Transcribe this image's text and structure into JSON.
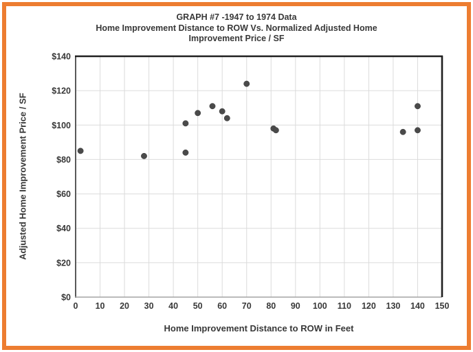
{
  "frame": {
    "border_color": "#ED7D31",
    "background_color": "#FFFFFF"
  },
  "chart_data": {
    "type": "scatter",
    "title_lines": [
      "GRAPH #7 -1947 to 1974 Data",
      "Home Improvement Distance to ROW Vs. Normalized Adjusted Home",
      "Improvement Price / SF"
    ],
    "xlabel": "Home Improvement Distance to ROW in Feet",
    "ylabel": "Adjusted Home Improvement Price / SF",
    "xlim": [
      0,
      150
    ],
    "ylim": [
      0,
      140
    ],
    "x_ticks": [
      0,
      10,
      20,
      30,
      40,
      50,
      60,
      70,
      80,
      90,
      100,
      110,
      120,
      130,
      140,
      150
    ],
    "x_tick_labels": [
      "0",
      "10",
      "20",
      "30",
      "40",
      "50",
      "60",
      "70",
      "80",
      "90",
      "100",
      "110",
      "120",
      "130",
      "140",
      "150"
    ],
    "y_ticks": [
      0,
      20,
      40,
      60,
      80,
      100,
      120,
      140
    ],
    "y_tick_labels": [
      "$0",
      "$20",
      "$40",
      "$60",
      "$80",
      "$100",
      "$120",
      "$140"
    ],
    "grid": true,
    "legend_position": "none",
    "series": [
      {
        "marker_color": "#4A4A4A",
        "points": [
          {
            "x": 2,
            "y": 85
          },
          {
            "x": 28,
            "y": 82
          },
          {
            "x": 45,
            "y": 84
          },
          {
            "x": 45,
            "y": 101
          },
          {
            "x": 50,
            "y": 107
          },
          {
            "x": 56,
            "y": 111
          },
          {
            "x": 60,
            "y": 108
          },
          {
            "x": 62,
            "y": 104
          },
          {
            "x": 70,
            "y": 124
          },
          {
            "x": 81,
            "y": 98
          },
          {
            "x": 82,
            "y": 97
          },
          {
            "x": 134,
            "y": 96
          },
          {
            "x": 140,
            "y": 97
          },
          {
            "x": 140,
            "y": 111
          }
        ]
      }
    ],
    "colors": {
      "gridline": "#DBDBDB",
      "plot_border_dark": "#1F1F1F",
      "y_axis_line": "#595959",
      "x_axis_line": "#A3A3A3",
      "text": "#383838"
    }
  }
}
